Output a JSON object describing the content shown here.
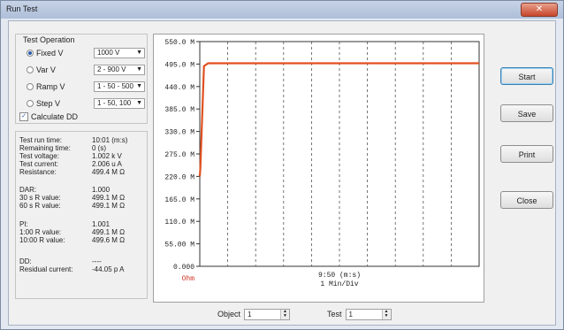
{
  "window": {
    "title": "Run Test"
  },
  "test_operation": {
    "label": "Test Operation",
    "options": [
      {
        "label": "Fixed V",
        "value": "1000 V",
        "selected": true
      },
      {
        "label": "Var V",
        "value": "2 - 900 V",
        "selected": false
      },
      {
        "label": "Ramp V",
        "value": "1 - 50 - 500",
        "selected": false
      },
      {
        "label": "Step V",
        "value": "1 - 50, 100",
        "selected": false
      }
    ],
    "calculate_dd": {
      "label": "Calculate DD",
      "checked": true
    }
  },
  "readings": [
    {
      "k": "Test run time:",
      "v": "10:01 (m:s)"
    },
    {
      "k": "Remaining time:",
      "v": "0 (s)"
    },
    {
      "k": "Test voltage:",
      "v": "1.002 k V"
    },
    {
      "k": "Test current:",
      "v": "2.006 u A"
    },
    {
      "k": "Resistance:",
      "v": "499.4 M Ω"
    }
  ],
  "dar": [
    {
      "k": "DAR:",
      "v": "1.000"
    },
    {
      "k": "30 s R value:",
      "v": "499.1 M Ω"
    },
    {
      "k": "60 s R value:",
      "v": "499.1 M Ω"
    }
  ],
  "pi": [
    {
      "k": "PI:",
      "v": "1.001"
    },
    {
      "k": "1:00 R value:",
      "v": "499.1 M Ω"
    },
    {
      "k": "10:00 R value:",
      "v": "499.6 M Ω"
    }
  ],
  "dd": [
    {
      "k": "DD:",
      "v": "----"
    },
    {
      "k": "Residual current:",
      "v": "-44.05 p A"
    }
  ],
  "buttons": {
    "start": "Start",
    "save": "Save",
    "print": "Print",
    "close": "Close"
  },
  "spinners": {
    "object": {
      "label": "Object",
      "value": "1"
    },
    "test": {
      "label": "Test",
      "value": "1"
    }
  },
  "chart_data": {
    "type": "line",
    "y_tick_labels": [
      "550.0 M",
      "495.0 M",
      "440.0 M",
      "385.0 M",
      "330.0 M",
      "275.0 M",
      "220.0 M",
      "165.0 M",
      "110.0 M",
      "55.00 M",
      "0.000"
    ],
    "ylim": [
      0,
      550
    ],
    "y_unit": "MΩ",
    "x_readout": "9:50 (m:s)",
    "x_scale": "1 Min/Div",
    "x_start_label": "Ohm",
    "xlim": [
      0,
      10
    ],
    "series": [
      {
        "color": "#e05020",
        "x": [
          0,
          0.02,
          0.15,
          0.3,
          10
        ],
        "y": [
          220,
          240,
          490,
          497,
          497
        ]
      }
    ],
    "grid": true
  }
}
